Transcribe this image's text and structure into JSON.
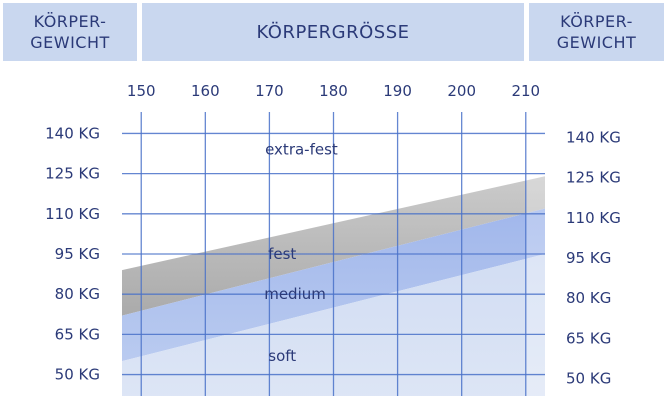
{
  "header": {
    "left_line1": "KÖRPER-",
    "left_line2": "GEWICHT",
    "middle": "KÖRPERGRÖSSE",
    "right_line1": "KÖRPER-",
    "right_line2": "GEWICHT"
  },
  "chart_data": {
    "type": "area",
    "x_ticks": [
      "150",
      "160",
      "170",
      "180",
      "190",
      "200",
      "210"
    ],
    "x_values": [
      150,
      160,
      170,
      180,
      190,
      200,
      210
    ],
    "y_ticks_left": [
      "140 KG",
      "125 KG",
      "110 KG",
      "95 KG",
      "80 KG",
      "65 KG",
      "50 KG"
    ],
    "y_ticks_right": [
      "140 KG",
      "125 KG",
      "110 KG",
      "95 KG",
      "80 KG",
      "65 KG",
      "50 KG"
    ],
    "y_values": [
      140,
      125,
      110,
      95,
      80,
      65,
      50
    ],
    "xlim": [
      147,
      213
    ],
    "ylim": [
      42,
      148
    ],
    "grid": true,
    "zones": [
      {
        "label": "extra-fest",
        "label_x": 175,
        "label_y": 134,
        "lower_start": 89,
        "lower_end": 124,
        "color": "#ffffff"
      },
      {
        "label": "fest",
        "label_x": 172,
        "label_y": 95,
        "lower_start": 72,
        "lower_end": 112,
        "color": "#a9a9a9"
      },
      {
        "label": "medium",
        "label_x": 174,
        "label_y": 80,
        "lower_start": 55,
        "lower_end": 95,
        "color": "#9fb5ea"
      },
      {
        "label": "soft",
        "label_x": 172,
        "label_y": 57,
        "lower_start": 42,
        "lower_end": 42,
        "color": "#d4dff3"
      }
    ],
    "colors": {
      "grid": "#4a72c9",
      "text": "#2b3a78",
      "header_bg": "#c9d7ef"
    }
  }
}
